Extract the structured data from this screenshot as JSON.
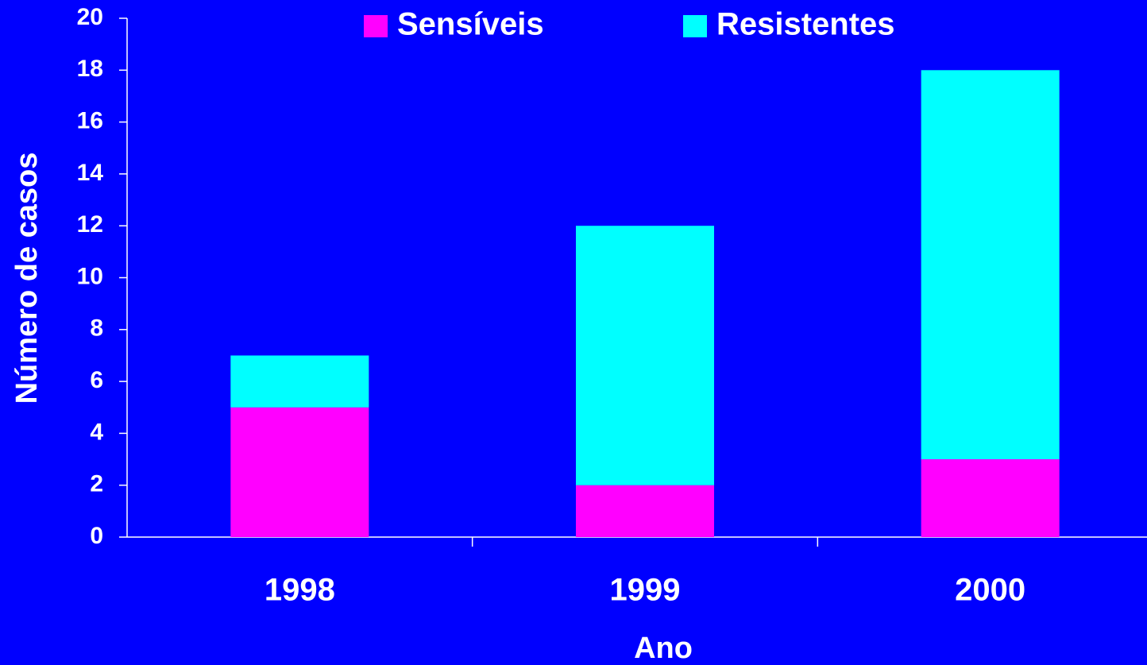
{
  "chart_data": {
    "type": "stacked_bar",
    "x_label": "Ano",
    "y_label": "Número de casos",
    "categories": [
      "1998",
      "1999",
      "2000"
    ],
    "series": [
      {
        "name": "Sensíveis",
        "color": "#ff00ff",
        "values": [
          5,
          2,
          3
        ]
      },
      {
        "name": "Resistentes",
        "color": "#00ffff",
        "values": [
          2,
          10,
          15
        ]
      }
    ],
    "ylim": [
      0,
      20
    ],
    "yticks": [
      0,
      2,
      4,
      6,
      8,
      10,
      12,
      14,
      16,
      18,
      20
    ],
    "legend": "top"
  }
}
